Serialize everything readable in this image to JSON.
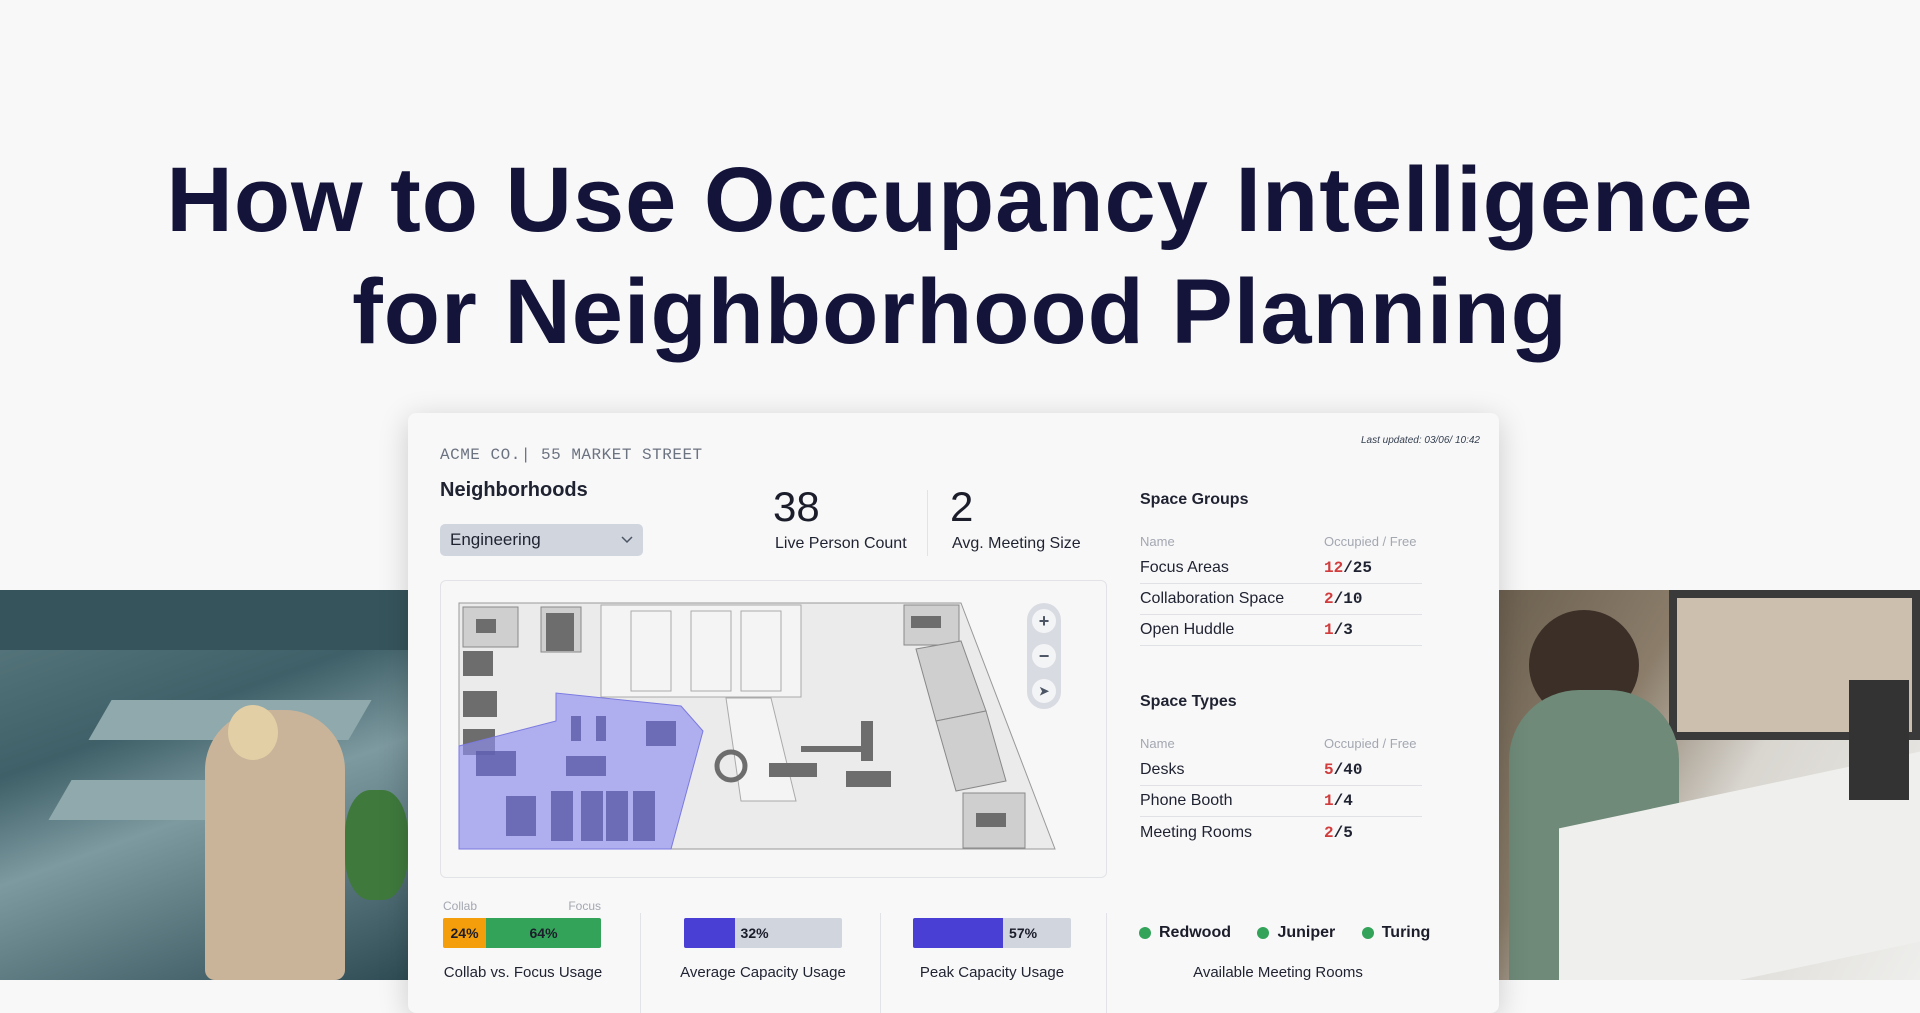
{
  "headline": {
    "line1": "How to Use Occupancy Intelligence",
    "line2": "for Neighborhood Planning"
  },
  "dashboard": {
    "company": "ACME CO.| 55 MARKET STREET",
    "last_updated": "Last updated: 03/06/ 10:42",
    "neighborhoods_label": "Neighborhoods",
    "neighborhood_selected": "Engineering",
    "stats": [
      {
        "value": "38",
        "label": "Live Person Count"
      },
      {
        "value": "2",
        "label": "Avg. Meeting Size"
      }
    ],
    "map_controls": [
      "zoom-in-icon",
      "zoom-out-icon",
      "compass-icon"
    ],
    "highlight_color": "#8f8ef0",
    "space_groups": {
      "title": "Space Groups",
      "col_name": "Name",
      "col_value": "Occupied / Free",
      "rows": [
        {
          "name": "Focus Areas",
          "occupied": "12",
          "total": "/25"
        },
        {
          "name": "Collaboration Space",
          "occupied": "2",
          "total": "/10"
        },
        {
          "name": "Open Huddle",
          "occupied": "1",
          "total": "/3"
        }
      ]
    },
    "space_types": {
      "title": "Space Types",
      "col_name": "Name",
      "col_value": "Occupied / Free",
      "rows": [
        {
          "name": "Desks",
          "occupied": "5",
          "total": "/40"
        },
        {
          "name": "Phone Booth",
          "occupied": "1",
          "total": "/4"
        },
        {
          "name": "Meeting Rooms",
          "occupied": "2",
          "total": "/5"
        }
      ]
    },
    "collab_focus": {
      "collab_label": "Collab",
      "focus_label": "Focus",
      "collab_pct": "24%",
      "focus_pct": "64%",
      "caption": "Collab vs. Focus Usage",
      "collab_color": "#f59e0b",
      "focus_color": "#34a35a"
    },
    "avg_capacity": {
      "pct": "32%",
      "value": 32,
      "caption": "Average Capacity Usage",
      "color": "#4a3fd4"
    },
    "peak_capacity": {
      "pct": "57%",
      "value": 57,
      "caption": "Peak Capacity Usage",
      "color": "#4a3fd4"
    },
    "meeting_rooms": {
      "caption": "Available Meeting Rooms",
      "rooms": [
        "Redwood",
        "Juniper",
        "Turing"
      ],
      "status_color": "#34a35a"
    }
  }
}
